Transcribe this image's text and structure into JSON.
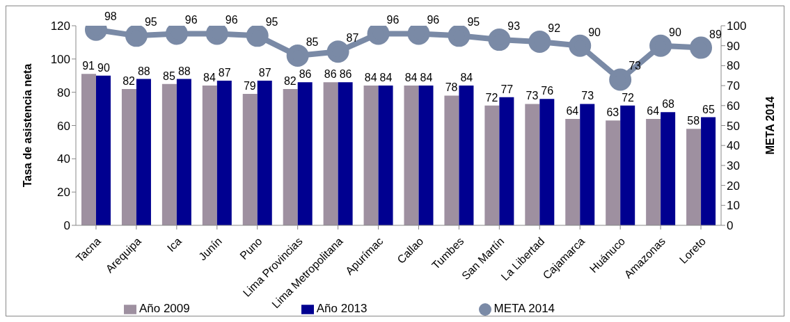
{
  "chart_data": {
    "type": "bar",
    "ylabel": "Tasa de asistencia neta",
    "y2label": "META 2014",
    "categories": [
      "Tacna",
      "Arequipa",
      "Ica",
      "Junín",
      "Puno",
      "Lima Provincias",
      "Lima Metropolitana",
      "Apurímac",
      "Callao",
      "Tumbes",
      "San Martín",
      "La Libertad",
      "Cajamarca",
      "Huánuco",
      "Amazonas",
      "Loreto"
    ],
    "series": [
      {
        "name": "Año 2009",
        "color": "#9e90a0",
        "values": [
          91,
          82,
          85,
          84,
          79,
          82,
          86,
          84,
          84,
          78,
          72,
          73,
          64,
          63,
          64,
          58
        ]
      },
      {
        "name": "Año 2013",
        "color": "#000090",
        "values": [
          90,
          88,
          88,
          87,
          87,
          86,
          86,
          84,
          84,
          84,
          77,
          76,
          73,
          72,
          68,
          65
        ]
      },
      {
        "name": "META 2014",
        "type": "line",
        "axis": "y2",
        "color": "#7a8aa6",
        "values": [
          98,
          95,
          96,
          96,
          95,
          85,
          87,
          96,
          96,
          95,
          93,
          92,
          90,
          73,
          90,
          89
        ]
      }
    ],
    "ylim": [
      0,
      120
    ],
    "yticks": [
      0,
      20,
      40,
      60,
      80,
      100,
      120
    ],
    "y2lim": [
      0,
      100
    ],
    "y2ticks": [
      0,
      10,
      20,
      30,
      40,
      50,
      60,
      70,
      80,
      90,
      100
    ],
    "data_labels": true,
    "grid": false,
    "legend": "bottom",
    "marker": "circle"
  }
}
